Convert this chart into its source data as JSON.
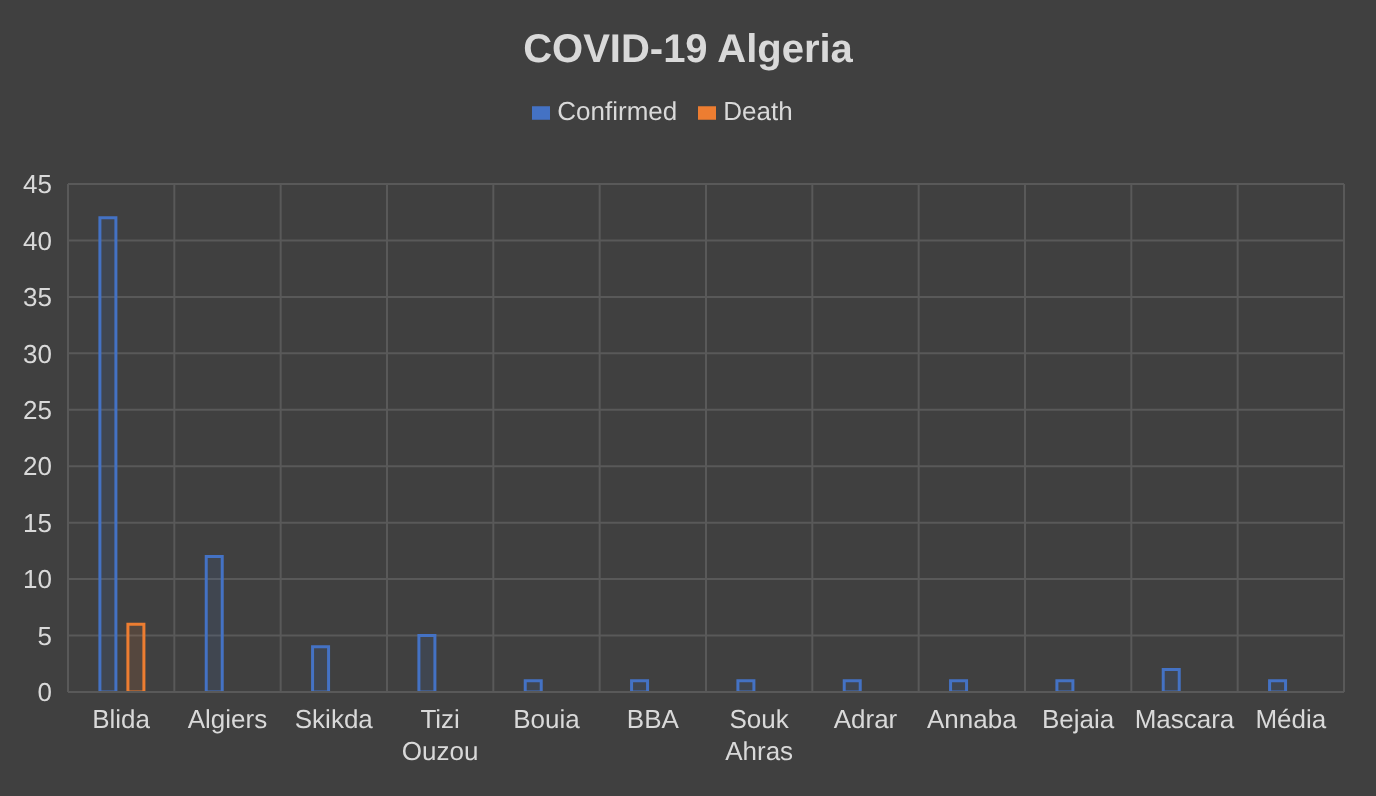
{
  "chart_data": {
    "type": "bar",
    "title": "COVID-19 Algeria",
    "categories": [
      "Blida",
      "Algiers",
      "Skikda",
      "Tizi Ouzou",
      "Bouia",
      "BBA",
      "Souk Ahras",
      "Adrar",
      "Annaba",
      "Bejaia",
      "Mascara",
      "Média"
    ],
    "series": [
      {
        "name": "Confirmed",
        "color": "#4472c4",
        "values": [
          42,
          12,
          4,
          5,
          1,
          1,
          1,
          1,
          1,
          1,
          2,
          1
        ]
      },
      {
        "name": "Death",
        "color": "#ed7d31",
        "values": [
          6,
          0,
          0,
          0,
          0,
          0,
          0,
          0,
          0,
          0,
          0,
          0
        ]
      }
    ],
    "ylim": [
      0,
      45
    ],
    "yticks": [
      0,
      5,
      10,
      15,
      20,
      25,
      30,
      35,
      40,
      45
    ],
    "grid": true,
    "legend": "top"
  }
}
